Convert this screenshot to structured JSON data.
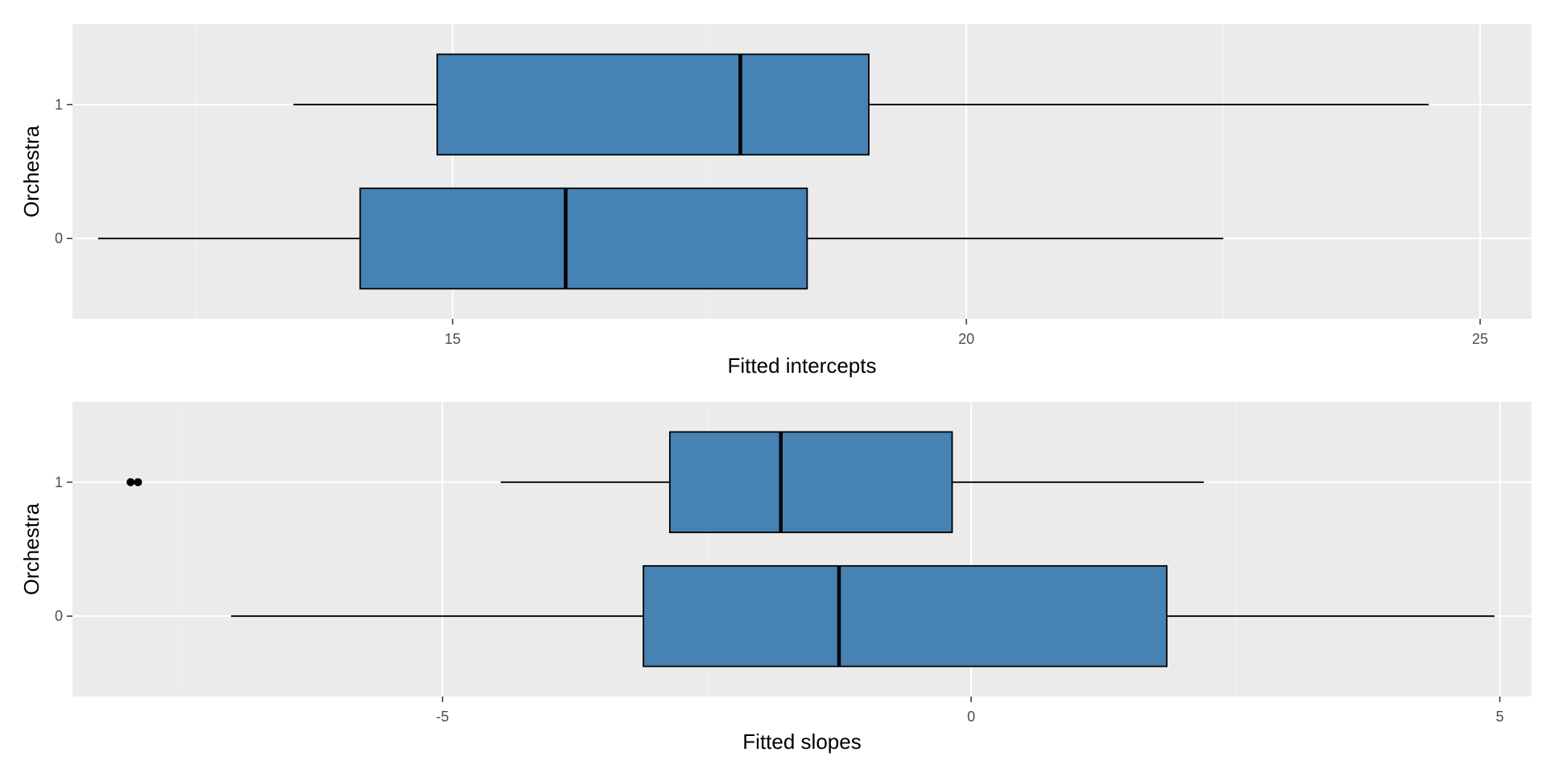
{
  "colors": {
    "panel_background": "#ebebeb",
    "grid_major": "#ffffff",
    "grid_minor": "#f4f4f4",
    "box_fill": "#4682b4",
    "box_outline": "#000000",
    "tick_label": "#4d4d4d",
    "axis_title": "#000000"
  },
  "chart_data": [
    {
      "type": "boxplot",
      "orientation": "horizontal",
      "xlabel": "Fitted intercepts",
      "ylabel": "Orchestra",
      "xlim": [
        11.3,
        25.5
      ],
      "x_ticks": [
        15,
        20,
        25
      ],
      "categories": [
        "0",
        "1"
      ],
      "grid": true,
      "boxes": [
        {
          "category": "0",
          "whisker_low": 11.55,
          "q1": 14.1,
          "median": 16.1,
          "q3": 18.45,
          "whisker_high": 22.5,
          "outliers": []
        },
        {
          "category": "1",
          "whisker_low": 13.45,
          "q1": 14.85,
          "median": 17.8,
          "q3": 19.05,
          "whisker_high": 24.5,
          "outliers": []
        }
      ]
    },
    {
      "type": "boxplot",
      "orientation": "horizontal",
      "xlabel": "Fitted slopes",
      "ylabel": "Orchestra",
      "xlim": [
        -8.5,
        5.3
      ],
      "x_ticks": [
        -5,
        0,
        5
      ],
      "categories": [
        "0",
        "1"
      ],
      "grid": true,
      "boxes": [
        {
          "category": "0",
          "whisker_low": -7.0,
          "q1": -3.1,
          "median": -1.25,
          "q3": 1.85,
          "whisker_high": 4.95,
          "outliers": []
        },
        {
          "category": "1",
          "whisker_low": -4.45,
          "q1": -2.85,
          "median": -1.8,
          "q3": -0.18,
          "whisker_high": 2.2,
          "outliers": [
            -7.95,
            -7.88
          ]
        }
      ]
    }
  ]
}
